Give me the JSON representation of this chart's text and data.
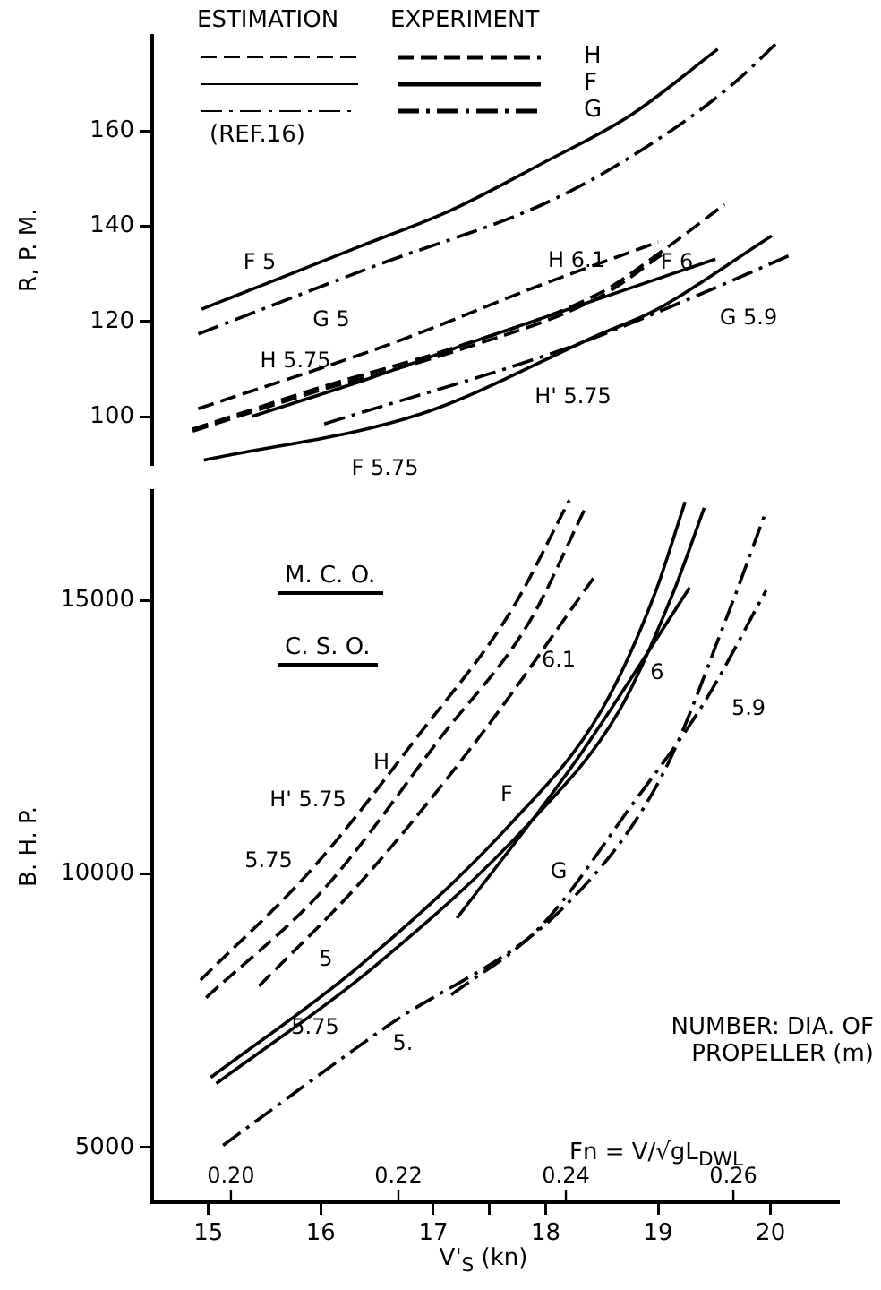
{
  "chart_data": [
    {
      "type": "line",
      "ylabel": "R, P. M.",
      "xticks": [
        15,
        16,
        17,
        18,
        19,
        20
      ],
      "ylim": [
        90,
        180
      ],
      "yticks": [
        100,
        120,
        140,
        160
      ],
      "tick_labels": "y",
      "grid": false,
      "legend": false,
      "marker": "none",
      "series": [
        {
          "color": "#000000",
          "line_style": "solid",
          "x": [
            14.94,
            16.35,
            17.16,
            17.96,
            18.76,
            19.53
          ],
          "values": [
            122.6,
            135.8,
            143.4,
            153.1,
            163.4,
            177.2
          ]
        },
        {
          "color": "#000000",
          "line_style": "dashdot",
          "x": [
            14.91,
            16.46,
            18.11,
            19.19,
            19.72,
            20.08
          ],
          "values": [
            117.4,
            131.5,
            146.1,
            161.3,
            171,
            179.1
          ]
        },
        {
          "color": "#000000",
          "line_style": "dashed",
          "x": [
            14.91,
            16.62,
            17.96,
            19.0
          ],
          "values": [
            101.7,
            115.3,
            127.7,
            136.7
          ]
        },
        {
          "color": "#000000",
          "line_style": "dashed",
          "x": [
            14.86,
            16.0,
            17.21,
            18.49,
            19.03,
            19.59
          ],
          "values": [
            97.4,
            106.2,
            114.7,
            126.1,
            134.7,
            144.6
          ]
        },
        {
          "color": "#000000",
          "line_style": "dashed",
          "x": [
            14.86,
            16.0,
            17.21,
            18.49,
            19.03
          ],
          "values": [
            97.0,
            105.6,
            113.9,
            125.3,
            134.0
          ]
        },
        {
          "color": "#000000",
          "line_style": "solid",
          "x": [
            15.39,
            16.4,
            17.42,
            19.51
          ],
          "values": [
            100.1,
            107.8,
            116.3,
            133.1
          ]
        },
        {
          "color": "#000000",
          "line_style": "solid",
          "x": [
            14.96,
            16.89,
            18.49,
            18.97,
            20.01
          ],
          "values": [
            90.9,
            100.6,
            117.4,
            122.3,
            138
          ]
        },
        {
          "color": "#000000",
          "line_style": "dashdot",
          "x": [
            16.03,
            18.22,
            19.2,
            20.2
          ],
          "values": [
            98.5,
            114.7,
            124,
            134.2
          ]
        }
      ],
      "annotations": [
        "ESTIMATION",
        "EXPERIMENT",
        "H",
        "F",
        "G",
        "(REF.16)",
        "F 5",
        "G 5",
        "H 6.1",
        "F 6",
        "G 5.9",
        "H 5.75",
        "H' 5.75",
        "F 5.75"
      ]
    },
    {
      "type": "line",
      "ylabel": "B. H. P.",
      "xlabel": "V'$_{S}$ (kn)",
      "x2label": "Fn = V/√gL$_{DWL}$",
      "xlim": [
        14.5,
        20.6
      ],
      "xticks": [
        15,
        16,
        17,
        {
          "value": 17.5,
          "label": null
        },
        18,
        19,
        20
      ],
      "x2lim": [
        0.1906,
        0.2725
      ],
      "x2ticks": [
        {
          "value": 0.2,
          "label": "0.20"
        },
        {
          "value": 0.22,
          "label": "0.22"
        },
        {
          "value": 0.24,
          "label": "0.24"
        },
        {
          "value": 0.26,
          "label": "0.26"
        }
      ],
      "ylim": [
        4000,
        17000
      ],
      "yticks": [
        5000,
        10000,
        15000
      ],
      "grid": false,
      "legend": false,
      "marker": "none",
      "series": [
        {
          "color": "#000000",
          "line_style": "dashed",
          "x": [
            14.93,
            15.93,
            16.89,
            17.69,
            18.21
          ],
          "values": [
            8060,
            10110,
            12590,
            14800,
            16830
          ]
        },
        {
          "color": "#000000",
          "line_style": "dashed",
          "x": [
            14.98,
            16.03,
            17.08,
            17.85,
            18.36
          ],
          "values": [
            7740,
            9730,
            12530,
            14590,
            16720
          ]
        },
        {
          "color": "#000000",
          "line_style": "dashed",
          "x": [
            15.45,
            16.35,
            17.42,
            18.44
          ],
          "values": [
            7950,
            9840,
            12530,
            15450
          ]
        },
        {
          "color": "#000000",
          "line_style": "solid",
          "x": [
            15.02,
            16.35,
            17.69,
            18.49,
            18.97,
            19.24
          ],
          "values": [
            6280,
            8330,
            10920,
            12970,
            15120,
            16800
          ]
        },
        {
          "color": "#000000",
          "line_style": "solid",
          "x": [
            15.07,
            16.46,
            17.85,
            18.65,
            19.13,
            19.41
          ],
          "values": [
            6170,
            8280,
            10920,
            12970,
            15120,
            16690
          ]
        },
        {
          "color": "#000000",
          "line_style": "solid",
          "x": [
            17.21,
            18.28,
            19.28
          ],
          "values": [
            9190,
            12100,
            15230
          ]
        },
        {
          "color": "#000000",
          "line_style": "dashdot",
          "x": [
            15.13,
            16.57,
            18.17,
            19.03,
            19.61,
            19.96
          ],
          "values": [
            5040,
            7190,
            9410,
            11780,
            14690,
            16630
          ]
        },
        {
          "color": "#000000",
          "line_style": "dashdot",
          "x": [
            17.16,
            17.96,
            18.76,
            19.4,
            19.96
          ],
          "values": [
            7790,
            9050,
            11240,
            13100,
            15180
          ]
        }
      ],
      "annotations": [
        "M. C. O.",
        "C. S. O.",
        "NUMBER: DIA. OF PROPELLER (m)",
        "H",
        "H' 5.75",
        "5.75",
        "6.1",
        "F",
        "6",
        "5",
        "5.75",
        "5.",
        "G",
        "5.9"
      ]
    }
  ]
}
